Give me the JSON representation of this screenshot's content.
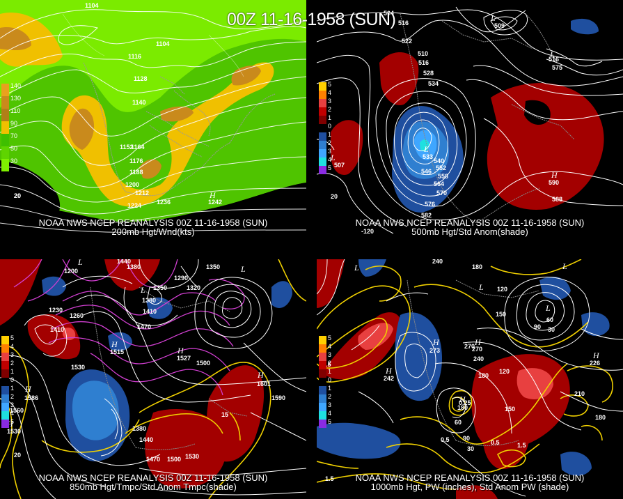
{
  "title": "00Z 11-16-1958 (SUN)",
  "panels": [
    {
      "id": "p1",
      "line1": "NOAA NWS NCEP REANALYSIS 00Z 11-16-1958 (SUN)",
      "line2": "200mb Hgt/Wnd(kts)",
      "scale": [
        "140",
        "130",
        "110",
        "90",
        "70",
        "50",
        "30"
      ],
      "scale_colors": [
        "#e8a21e",
        "#c98a1c",
        "#b07f18",
        "#f0c000",
        "#3fbf00",
        "#5fd400",
        "#7fef00"
      ],
      "labels": [
        "1104",
        "1104",
        "1116",
        "1128",
        "1140",
        "1152",
        "1164",
        "1176",
        "1188",
        "1200",
        "1212",
        "1224",
        "1236",
        "20",
        "20"
      ],
      "highs": [
        "H"
      ],
      "high_values": [
        "1242"
      ]
    },
    {
      "id": "p2",
      "line1": "NOAA NWS NCEP REANALYSIS 00Z 11-16-1958 (SUN)",
      "line2": "500mb Hgt/Std Anom(shade)",
      "scale": [
        "5",
        "4",
        "3",
        "2",
        "1",
        "0",
        "1",
        "2",
        "3",
        "4",
        "5"
      ],
      "labels": [
        "504",
        "516",
        "522",
        "510",
        "516",
        "528",
        "534",
        "516",
        "540",
        "546",
        "552",
        "558",
        "564",
        "570",
        "576",
        "582",
        "588",
        "20",
        "-120"
      ],
      "lows": [
        "L",
        "L",
        "L",
        "L"
      ],
      "low_values": [
        "509",
        "533",
        "507",
        "575"
      ],
      "highs": [
        "H"
      ],
      "high_values": [
        "590"
      ]
    },
    {
      "id": "p3",
      "line1": "NOAA NWS NCEP REANALYSIS 00Z 11-16-1958 (SUN)",
      "line2": "850mb Hgt/Tmpc/Std Anom Tmpc(shade)",
      "scale": [
        "5",
        "4",
        "3",
        "2",
        "1",
        "0",
        "1",
        "2",
        "3",
        "4",
        "5"
      ],
      "labels": [
        "1440",
        "1380",
        "1350",
        "1320",
        "1290",
        "1350",
        "1380",
        "1410",
        "1470",
        "1530",
        "1500",
        "1590",
        "1560",
        "1380",
        "1440",
        "1470",
        "1500",
        "1530",
        "15",
        "1200",
        "1230",
        "1260",
        "1410",
        "20"
      ],
      "highs": [
        "H",
        "H",
        "H",
        "H",
        "H"
      ],
      "high_values": [
        "1515",
        "1527",
        "1601",
        "1586",
        "1530"
      ],
      "lows": [
        "L",
        "L",
        "L"
      ]
    },
    {
      "id": "p4",
      "line1": "NOAA NWS NCEP REANALYSIS 00Z 11-16-1958 (SUN)",
      "line2": "1000mb Hgt, PW (inches), Std Anom PW (shade)",
      "scale": [
        "5",
        "4",
        "3",
        "2",
        "1",
        "0",
        "1",
        "2",
        "3",
        "4",
        "5"
      ],
      "labels": [
        "240",
        "180",
        "120",
        "150",
        "90",
        "60",
        "30",
        "270",
        "240",
        "180",
        "120",
        "210",
        "180",
        "150",
        "60",
        "90",
        "30",
        "1.5",
        "0.5",
        "0.25",
        "1.5",
        "0.5",
        "1.5"
      ],
      "highs": [
        "H",
        "H",
        "H",
        "H",
        "H"
      ],
      "high_values": [
        "273",
        "270",
        "242",
        "226",
        "180"
      ],
      "lows": [
        "L",
        "L",
        "L",
        "L"
      ]
    }
  ]
}
